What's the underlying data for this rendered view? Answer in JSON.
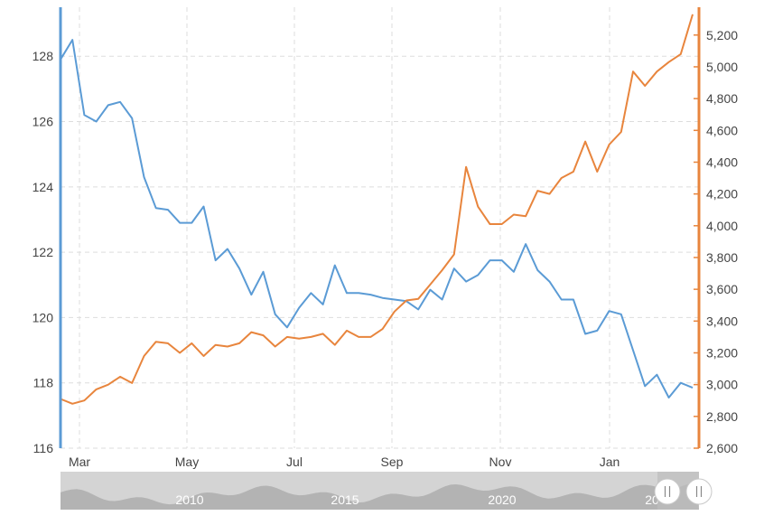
{
  "chart_data": {
    "type": "line",
    "title": "",
    "xlabel": "",
    "ylabel_left": "",
    "ylabel_right": "",
    "x_tick_labels": [
      "Mar",
      "May",
      "Jul",
      "Sep",
      "Nov",
      "Jan"
    ],
    "y_left": {
      "ticks": [
        116,
        118,
        120,
        122,
        124,
        126,
        128
      ],
      "range": [
        116,
        129.5
      ],
      "color": "#5b9bd5"
    },
    "y_right": {
      "ticks": [
        "2,600",
        "2,800",
        "3,000",
        "3,200",
        "3,400",
        "3,600",
        "3,800",
        "4,000",
        "4,200",
        "4,400",
        "4,600",
        "4,800",
        "5,000",
        "5,200"
      ],
      "tick_values": [
        2600,
        2800,
        3000,
        3200,
        3400,
        3600,
        3800,
        4000,
        4200,
        4400,
        4600,
        4800,
        5000,
        5200
      ],
      "range": [
        2600,
        5375
      ],
      "color": "#e8853d"
    },
    "grid": true,
    "series": [
      {
        "axis": "left",
        "color": "#5b9bd5",
        "values": [
          127.9,
          128.5,
          126.2,
          126.0,
          126.5,
          126.6,
          126.1,
          124.3,
          123.35,
          123.3,
          122.9,
          122.9,
          123.4,
          121.75,
          122.1,
          121.5,
          120.7,
          121.4,
          120.1,
          119.7,
          120.3,
          120.75,
          120.4,
          121.6,
          120.75,
          120.75,
          120.7,
          120.6,
          120.55,
          120.5,
          120.25,
          120.85,
          120.55,
          121.5,
          121.1,
          121.3,
          121.75,
          121.75,
          121.4,
          122.25,
          121.45,
          121.1,
          120.55,
          120.55,
          119.5,
          119.6,
          120.2,
          120.1,
          119.0,
          117.9,
          118.25,
          117.55,
          118.0,
          117.85
        ]
      },
      {
        "axis": "right",
        "color": "#e8853d",
        "values": [
          2910,
          2880,
          2900,
          2970,
          3000,
          3050,
          3010,
          3180,
          3270,
          3260,
          3200,
          3260,
          3180,
          3250,
          3240,
          3260,
          3330,
          3310,
          3240,
          3300,
          3290,
          3300,
          3320,
          3250,
          3340,
          3300,
          3300,
          3350,
          3460,
          3530,
          3540,
          3630,
          3720,
          3820,
          4370,
          4120,
          4010,
          4010,
          4070,
          4060,
          4220,
          4200,
          4300,
          4340,
          4530,
          4340,
          4510,
          4590,
          4970,
          4880,
          4970,
          5030,
          5080,
          5330
        ]
      }
    ],
    "navigator": {
      "year_labels": [
        "2010",
        "2015",
        "2020",
        "20"
      ]
    }
  }
}
